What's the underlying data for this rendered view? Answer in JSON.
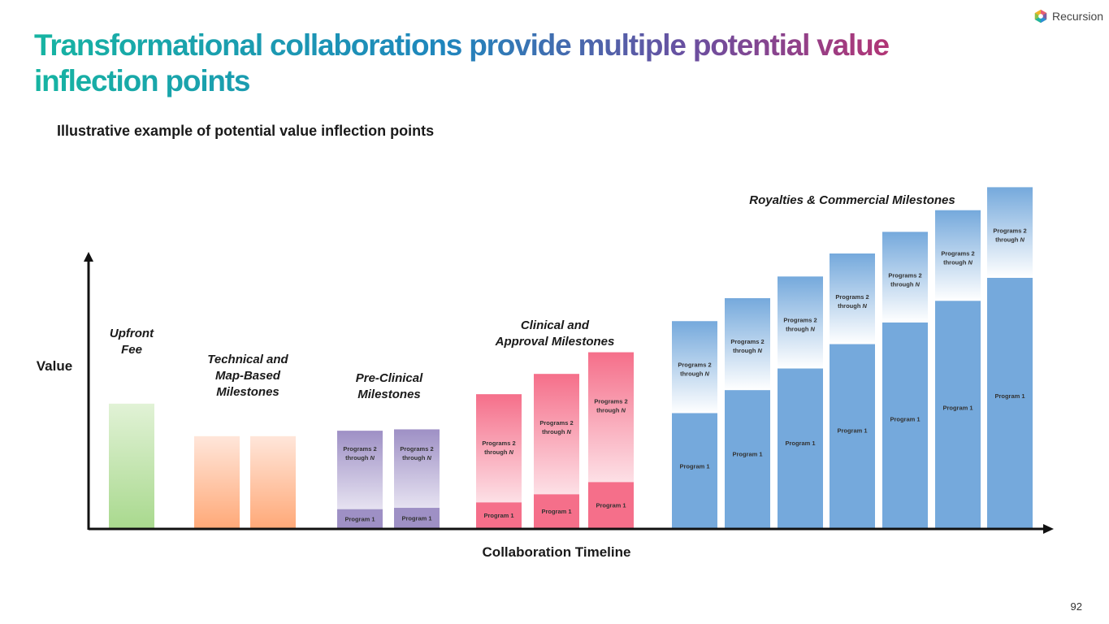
{
  "header": {
    "title": "Transformational collaborations provide multiple potential value inflection points",
    "subtitle": "Illustrative example of potential value inflection points",
    "logo_text": "Recursion",
    "page_number": "92"
  },
  "chart_data": {
    "type": "bar",
    "title": "Illustrative example of potential value inflection points",
    "xlabel": "Collaboration Timeline",
    "ylabel": "Value",
    "ylim": [
      0,
      100
    ],
    "segment_labels": {
      "base": "Program 1",
      "top_line1": "Programs 2",
      "top_line2": "through",
      "top_n": "N"
    },
    "groups": [
      {
        "name": "Upfront Fee",
        "label_lines": [
          "Upfront",
          "Fee"
        ],
        "color": "#a9d98e",
        "color_light": "#e1f2d6",
        "bars": [
          {
            "total": 46,
            "program1": null
          }
        ]
      },
      {
        "name": "Technical and Map-Based Milestones",
        "label_lines": [
          "Technical and",
          "Map-Based",
          "Milestones"
        ],
        "color": "#ffa978",
        "color_light": "#ffe6da",
        "bars": [
          {
            "total": 34,
            "program1": null
          },
          {
            "total": 34,
            "program1": null
          }
        ]
      },
      {
        "name": "Pre-Clinical Milestones",
        "label_lines": [
          "Pre-Clinical",
          "Milestones"
        ],
        "color": "#9e90c5",
        "color_light": "#e6e2f1",
        "bars": [
          {
            "total": 36,
            "program1": 7
          },
          {
            "total": 36.5,
            "program1": 7.5
          }
        ]
      },
      {
        "name": "Clinical and Approval Milestones",
        "label_lines": [
          "Clinical and",
          "Approval Milestones"
        ],
        "color": "#f56f8a",
        "color_light": "#fde0e6",
        "bars": [
          {
            "total": 49.5,
            "program1": 9.5
          },
          {
            "total": 57,
            "program1": 12.5
          },
          {
            "total": 65,
            "program1": 17
          }
        ]
      },
      {
        "name": "Royalties & Commercial Milestones",
        "label_lines": [
          "Royalties & Commercial Milestones"
        ],
        "color": "#75a9dc",
        "color_light": "#ffffff",
        "bars": [
          {
            "total": 76.5,
            "program1": 42.5
          },
          {
            "total": 85,
            "program1": 51
          },
          {
            "total": 93,
            "program1": 59
          },
          {
            "total": 101.5,
            "program1": 68
          },
          {
            "total": 109.5,
            "program1": 76
          },
          {
            "total": 117.5,
            "program1": 84
          },
          {
            "total": 126,
            "program1": 92.5
          }
        ]
      }
    ]
  }
}
